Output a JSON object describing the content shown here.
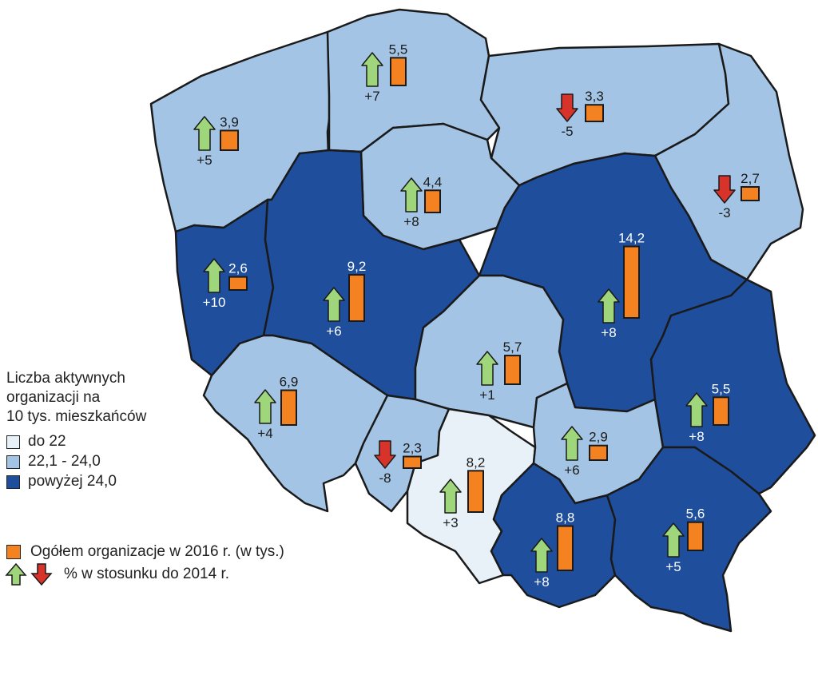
{
  "colors": {
    "low": "#e8f0f8",
    "mid": "#a3c4e4",
    "high": "#1f4e9c",
    "border": "#1a1a1a",
    "bar": "#f58220",
    "up": "#9fd67b",
    "down": "#d8332b"
  },
  "legend": {
    "title_lines": [
      "Liczba aktywnych",
      "organizacji na",
      "10 tys. mieszkańców"
    ],
    "classes": [
      {
        "label": "do 22",
        "class": "low"
      },
      {
        "label": "22,1 - 24,0",
        "class": "mid"
      },
      {
        "label": "powyżej 24,0",
        "class": "high"
      }
    ],
    "bar_label": "Ogółem organizacje w 2016 r. (w tys.)",
    "arrow_label": "% w stosunku do 2014 r."
  },
  "regions": [
    {
      "id": "zachodniopomorskie",
      "class": "mid",
      "orgs": "3,9",
      "orgs_value": 3.9,
      "change": "+5",
      "direction": "up"
    },
    {
      "id": "pomorskie",
      "class": "mid",
      "orgs": "5,5",
      "orgs_value": 5.5,
      "change": "+7",
      "direction": "up"
    },
    {
      "id": "warminsko-mazurskie",
      "class": "mid",
      "orgs": "3,3",
      "orgs_value": 3.3,
      "change": "-5",
      "direction": "down"
    },
    {
      "id": "podlaskie",
      "class": "mid",
      "orgs": "2,7",
      "orgs_value": 2.7,
      "change": "-3",
      "direction": "down"
    },
    {
      "id": "kujawsko-pomorskie",
      "class": "mid",
      "orgs": "4,4",
      "orgs_value": 4.4,
      "change": "+8",
      "direction": "up"
    },
    {
      "id": "lubuskie",
      "class": "high",
      "orgs": "2,6",
      "orgs_value": 2.6,
      "change": "+10",
      "direction": "up"
    },
    {
      "id": "wielkopolskie",
      "class": "high",
      "orgs": "9,2",
      "orgs_value": 9.2,
      "change": "+6",
      "direction": "up"
    },
    {
      "id": "mazowieckie",
      "class": "high",
      "orgs": "14,2",
      "orgs_value": 14.2,
      "change": "+8",
      "direction": "up"
    },
    {
      "id": "lodzkie",
      "class": "mid",
      "orgs": "5,7",
      "orgs_value": 5.7,
      "change": "+1",
      "direction": "up"
    },
    {
      "id": "dolnoslaskie",
      "class": "mid",
      "orgs": "6,9",
      "orgs_value": 6.9,
      "change": "+4",
      "direction": "up"
    },
    {
      "id": "opolskie",
      "class": "mid",
      "orgs": "2,3",
      "orgs_value": 2.3,
      "change": "-8",
      "direction": "down"
    },
    {
      "id": "slaskie",
      "class": "low",
      "orgs": "8,2",
      "orgs_value": 8.2,
      "change": "+3",
      "direction": "up"
    },
    {
      "id": "swietokrzyskie",
      "class": "mid",
      "orgs": "2,9",
      "orgs_value": 2.9,
      "change": "+6",
      "direction": "up"
    },
    {
      "id": "lubelskie",
      "class": "high",
      "orgs": "5,5",
      "orgs_value": 5.5,
      "change": "+8",
      "direction": "up"
    },
    {
      "id": "malopolskie",
      "class": "high",
      "orgs": "8,8",
      "orgs_value": 8.8,
      "change": "+8",
      "direction": "up"
    },
    {
      "id": "podkarpackie",
      "class": "high",
      "orgs": "5,6",
      "orgs_value": 5.6,
      "change": "+5",
      "direction": "up"
    }
  ]
}
